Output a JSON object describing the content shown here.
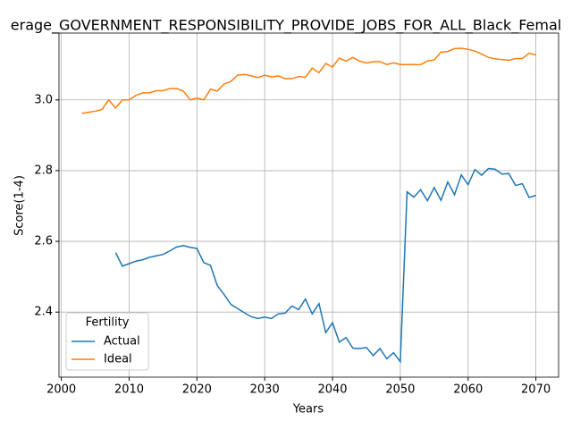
{
  "chart_data": {
    "type": "line",
    "title": "erage_GOVERNMENT_RESPONSIBILITY_PROVIDE_JOBS_FOR_ALL_Black_Femal",
    "x_label": "Years",
    "y_label": "Score(1-4)",
    "x": [
      2003,
      2004,
      2005,
      2006,
      2007,
      2008,
      2009,
      2010,
      2011,
      2012,
      2013,
      2014,
      2015,
      2016,
      2017,
      2018,
      2019,
      2020,
      2021,
      2022,
      2023,
      2024,
      2025,
      2026,
      2027,
      2028,
      2029,
      2030,
      2031,
      2032,
      2033,
      2034,
      2035,
      2036,
      2037,
      2038,
      2039,
      2040,
      2041,
      2042,
      2043,
      2044,
      2045,
      2046,
      2047,
      2048,
      2049,
      2050,
      2051,
      2052,
      2053,
      2054,
      2055,
      2056,
      2057,
      2058,
      2059,
      2060,
      2061,
      2062,
      2063,
      2064,
      2065,
      2066,
      2067,
      2068,
      2069,
      2070
    ],
    "series": [
      {
        "name": "Actual",
        "color": "#1f77b4",
        "values": [
          null,
          null,
          null,
          null,
          null,
          2.568,
          2.53,
          2.537,
          2.544,
          2.548,
          2.555,
          2.559,
          2.563,
          2.573,
          2.584,
          2.588,
          2.583,
          2.58,
          2.54,
          2.532,
          2.475,
          2.45,
          2.422,
          2.41,
          2.398,
          2.387,
          2.382,
          2.386,
          2.382,
          2.395,
          2.397,
          2.417,
          2.407,
          2.437,
          2.395,
          2.424,
          2.342,
          2.37,
          2.315,
          2.328,
          2.298,
          2.297,
          2.3,
          2.277,
          2.297,
          2.268,
          2.285,
          2.26,
          2.74,
          2.725,
          2.746,
          2.715,
          2.752,
          2.716,
          2.768,
          2.732,
          2.788,
          2.76,
          2.803,
          2.787,
          2.806,
          2.804,
          2.79,
          2.792,
          2.758,
          2.763,
          2.724,
          2.73
        ]
      },
      {
        "name": "Ideal",
        "color": "#ff7f0e",
        "values": [
          2.962,
          2.965,
          2.968,
          2.973,
          3.0,
          2.977,
          3.0,
          3.0,
          3.013,
          3.02,
          3.02,
          3.026,
          3.026,
          3.032,
          3.032,
          3.025,
          3.0,
          3.005,
          3.0,
          3.03,
          3.025,
          3.045,
          3.052,
          3.07,
          3.072,
          3.068,
          3.063,
          3.07,
          3.065,
          3.068,
          3.06,
          3.06,
          3.066,
          3.064,
          3.09,
          3.077,
          3.103,
          3.093,
          3.118,
          3.11,
          3.12,
          3.11,
          3.104,
          3.108,
          3.108,
          3.1,
          3.105,
          3.1,
          3.1,
          3.1,
          3.1,
          3.11,
          3.113,
          3.135,
          3.137,
          3.145,
          3.146,
          3.143,
          3.138,
          3.13,
          3.12,
          3.116,
          3.114,
          3.112,
          3.117,
          3.117,
          3.132,
          3.127
        ]
      }
    ],
    "xlim": [
      1999.65,
      2073.35
    ],
    "xticks": [
      2000,
      2010,
      2020,
      2030,
      2040,
      2050,
      2060,
      2070
    ],
    "ylim": [
      2.216,
      3.189
    ],
    "yticks": [
      2.4,
      2.6,
      2.8,
      {
        "value": 3,
        "label": "3.0"
      }
    ],
    "grid": true,
    "legend_title": "Fertility",
    "legend_position": "lower left"
  }
}
